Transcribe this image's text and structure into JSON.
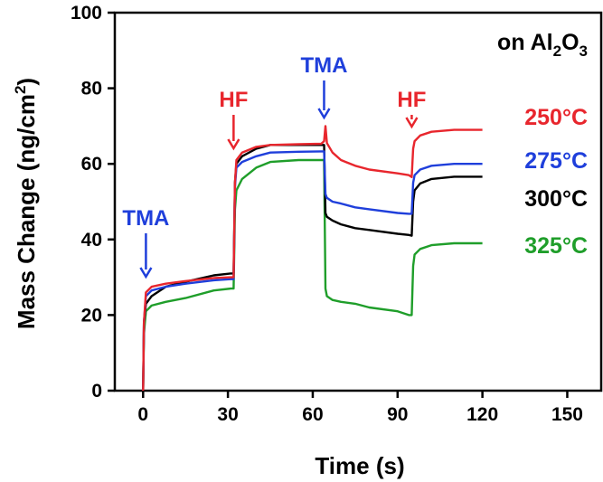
{
  "chart_data": {
    "type": "line",
    "panel_label": {
      "prefix": "on Al",
      "sub": "2",
      "mid": "O",
      "sub2": "3"
    },
    "xlabel": "Time (s)",
    "ylabel": {
      "prefix": "Mass Change (ng/cm",
      "sup": "2",
      "suffix": ")"
    },
    "xlim": [
      -10,
      162
    ],
    "ylim": [
      0,
      100
    ],
    "xticks": [
      "0",
      "30",
      "60",
      "90",
      "120",
      "150"
    ],
    "xtick_values": [
      0,
      30,
      60,
      90,
      120,
      150
    ],
    "yticks": [
      "0",
      "20",
      "40",
      "60",
      "80",
      "100"
    ],
    "ytick_values": [
      0,
      20,
      40,
      60,
      80,
      100
    ],
    "grid": false,
    "annotations": [
      {
        "text": "TMA",
        "x": 1,
        "color": "#1f3fdb"
      },
      {
        "text": "HF",
        "x": 32,
        "color": "#e8262d"
      },
      {
        "text": "TMA",
        "x": 64,
        "color": "#1f3fdb"
      },
      {
        "text": "HF",
        "x": 95,
        "color": "#e8262d"
      }
    ],
    "series": [
      {
        "name": "250°C",
        "color": "#e8262d",
        "x": [
          0,
          0.3,
          1,
          3,
          8,
          15,
          25,
          31,
          32,
          32.5,
          33,
          35,
          40,
          45,
          55,
          63,
          64,
          64.5,
          65,
          67,
          70,
          75,
          80,
          90,
          94,
          95,
          95.5,
          96,
          98,
          102,
          110,
          120
        ],
        "y": [
          0,
          18,
          26,
          27.5,
          28.3,
          29,
          29.8,
          30,
          30,
          55,
          61,
          63,
          64.5,
          65,
          65.2,
          65.3,
          66,
          70,
          65.5,
          63,
          61,
          59.5,
          58.5,
          57.5,
          57,
          56.5,
          64,
          66,
          67.5,
          68.5,
          69,
          69
        ]
      },
      {
        "name": "275°C",
        "color": "#1f3fdb",
        "x": [
          0,
          0.3,
          1,
          3,
          8,
          15,
          25,
          31,
          32,
          32.5,
          33,
          35,
          40,
          45,
          55,
          63,
          64,
          64.5,
          65,
          67,
          70,
          75,
          80,
          90,
          94,
          95,
          95.5,
          96,
          98,
          102,
          110,
          120
        ],
        "y": [
          0,
          18,
          25,
          26.5,
          27.5,
          28.3,
          29.2,
          29.5,
          29.5,
          54,
          59,
          60.5,
          62,
          63,
          63.2,
          63.3,
          63.3,
          52,
          51,
          50,
          49.5,
          48.5,
          48,
          47,
          46.8,
          46.8,
          55,
          57,
          58.5,
          59.5,
          60,
          60
        ]
      },
      {
        "name": "300°C",
        "color": "#000000",
        "x": [
          0,
          0.3,
          1,
          3,
          8,
          15,
          25,
          31,
          32,
          32.5,
          33,
          35,
          40,
          45,
          55,
          63,
          64,
          64.5,
          65,
          67,
          70,
          75,
          80,
          90,
          94,
          95,
          95.5,
          96,
          98,
          102,
          110,
          120
        ],
        "y": [
          0,
          18,
          23,
          25,
          27.5,
          28.8,
          30.5,
          31,
          31,
          55,
          60,
          62,
          64,
          65,
          65,
          65,
          65,
          47,
          46,
          45,
          44,
          43,
          42.5,
          41.5,
          41.2,
          41,
          50,
          53,
          54.8,
          56,
          56.6,
          56.6
        ]
      },
      {
        "name": "325°C",
        "color": "#1f9e2a",
        "x": [
          0,
          0.3,
          1,
          3,
          8,
          15,
          25,
          31,
          32,
          32.5,
          33,
          35,
          40,
          45,
          55,
          63,
          64,
          64.5,
          65,
          67,
          70,
          75,
          80,
          90,
          94,
          95,
          95.5,
          96,
          98,
          102,
          110,
          120
        ],
        "y": [
          0,
          15,
          21,
          22.5,
          23.5,
          24.5,
          26.5,
          27,
          27,
          48,
          53,
          56,
          59,
          60.5,
          61,
          61,
          61,
          27,
          25,
          24,
          23.5,
          23,
          22,
          21,
          20,
          20,
          33,
          36,
          37.5,
          38.5,
          39,
          39
        ]
      }
    ]
  }
}
